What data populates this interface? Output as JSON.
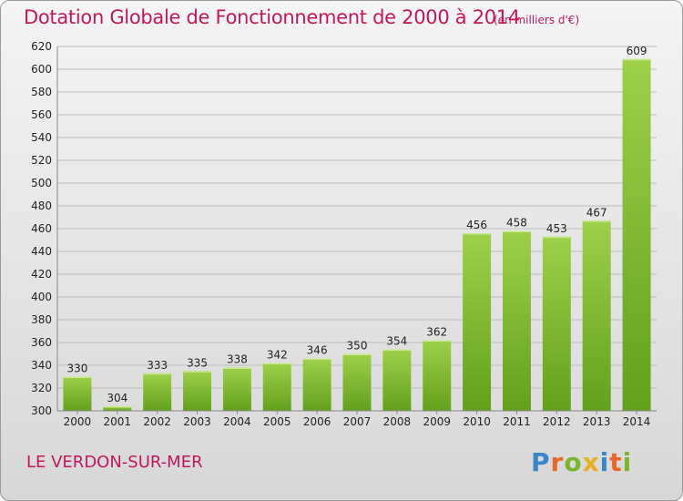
{
  "title": "Dotation Globale de Fonctionnement de 2000 à 2014",
  "unit": "(en milliers d'€)",
  "place": "LE VERDON-SUR-MER",
  "logo": "Proxiti",
  "colors": {
    "bar_light": "#9ed04a",
    "bar_dark": "#63a01c",
    "title": "#c0185a",
    "grid": "#bdbdbd"
  },
  "chart_data": {
    "type": "bar",
    "categories": [
      "2000",
      "2001",
      "2002",
      "2003",
      "2004",
      "2005",
      "2006",
      "2007",
      "2008",
      "2009",
      "2010",
      "2011",
      "2012",
      "2013",
      "2014"
    ],
    "values": [
      330,
      304,
      333,
      335,
      338,
      342,
      346,
      350,
      354,
      362,
      456,
      458,
      453,
      467,
      609
    ],
    "ylim": [
      300,
      620
    ],
    "yticks": [
      300,
      320,
      340,
      360,
      380,
      400,
      420,
      440,
      460,
      480,
      500,
      520,
      540,
      560,
      580,
      600,
      620
    ],
    "grid": true
  }
}
